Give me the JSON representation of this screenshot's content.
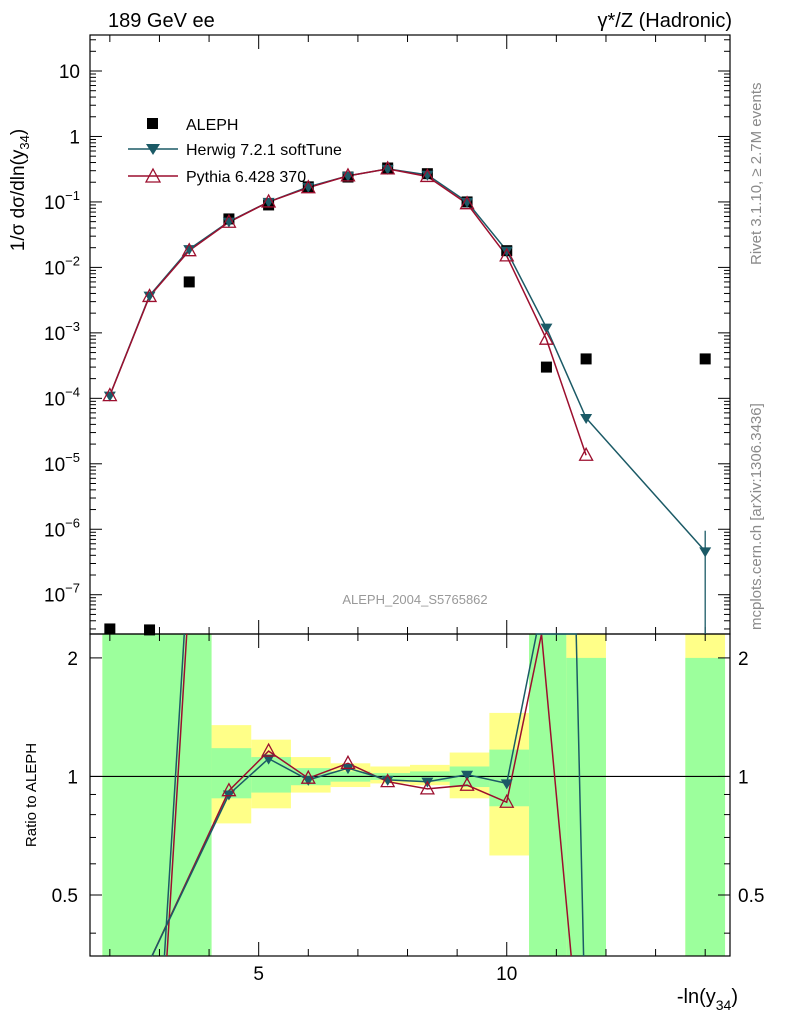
{
  "chart_data": {
    "type": "scatter",
    "header_left": "189 GeV ee",
    "header_right": "γ*/Z (Hadronic)",
    "side_top": "Rivet 3.1.10, ≥ 2.7M events",
    "side_bottom": "mcplots.cern.ch [arXiv:1306.3436]",
    "watermark": "ALEPH_2004_S5765862",
    "ylabel": "1/σ dσ/dln(y",
    "ylabel_sub": "34",
    "ylabel_close": ")",
    "ratio_ylabel": "Ratio to ALEPH",
    "xlabel": "-ln(y",
    "xlabel_sub": "34",
    "xlabel_close": ")",
    "xlim": [
      1.6,
      14.5
    ],
    "ylim_log10": [
      -7.6,
      1.55
    ],
    "ratio_ylim": [
      0.35,
      2.3
    ],
    "x_ticks": [
      5,
      10
    ],
    "x_tick_labels": [
      "5",
      "10"
    ],
    "y_ticks": [
      {
        "mant": "10",
        "exp": ""
      },
      {
        "mant": "1",
        "exp": ""
      },
      {
        "mant": "10",
        "exp": "−1"
      },
      {
        "mant": "10",
        "exp": "−2"
      },
      {
        "mant": "10",
        "exp": "−3"
      },
      {
        "mant": "10",
        "exp": "−4"
      },
      {
        "mant": "10",
        "exp": "−5"
      },
      {
        "mant": "10",
        "exp": "−6"
      },
      {
        "mant": "10",
        "exp": "−7"
      }
    ],
    "ratio_ticks": [
      2,
      1,
      0.5
    ],
    "ratio_tick_labels": [
      "2",
      "1",
      "0.5"
    ],
    "legend": [
      "ALEPH",
      "Herwig 7.2.1 softTune",
      "Pythia 6.428 370"
    ],
    "colors": {
      "data": "#000000",
      "herwig": "#1b5a66",
      "pythia": "#9c0f2e",
      "band_green": "#9cff9c",
      "band_yellow": "#ffff88"
    },
    "data": {
      "x": [
        2.0,
        2.8,
        3.6,
        4.4,
        5.2,
        6.0,
        6.8,
        7.6,
        8.4,
        9.2,
        10.0,
        10.8,
        11.6,
        14.0
      ],
      "y": [
        3e-08,
        2.9e-08,
        0.006,
        0.055,
        0.09,
        0.17,
        0.24,
        0.33,
        0.27,
        0.1,
        0.018,
        0.0003,
        0.0004,
        0.0004
      ]
    },
    "herwig": {
      "x": [
        2.0,
        2.8,
        3.6,
        4.4,
        5.2,
        6.0,
        6.8,
        7.6,
        8.4,
        9.2,
        10.0,
        10.8,
        11.6,
        14.0
      ],
      "y": [
        0.00011,
        0.0037,
        0.019,
        0.05,
        0.1,
        0.17,
        0.25,
        0.32,
        0.26,
        0.1,
        0.018,
        0.0012,
        5e-05,
        4.6e-07
      ]
    },
    "pythia": {
      "x": [
        2.0,
        2.8,
        3.6,
        4.4,
        5.2,
        6.0,
        6.8,
        7.6,
        8.4,
        9.2,
        10.0,
        10.8,
        11.6
      ],
      "y": [
        0.00011,
        0.0036,
        0.018,
        0.049,
        0.1,
        0.165,
        0.25,
        0.32,
        0.245,
        0.094,
        0.015,
        0.0008,
        1.35e-05
      ]
    },
    "herwig_ratio": {
      "x": [
        4.4,
        5.2,
        6.0,
        6.8,
        7.6,
        8.4,
        9.2,
        10.0
      ],
      "y": [
        0.9,
        1.11,
        0.98,
        1.05,
        0.98,
        0.97,
        1.01,
        0.96
      ]
    },
    "pythia_ratio": {
      "x": [
        4.4,
        5.2,
        6.0,
        6.8,
        7.6,
        8.4,
        9.2,
        10.0
      ],
      "y": [
        0.92,
        1.16,
        0.99,
        1.08,
        0.97,
        0.93,
        0.95,
        0.86
      ]
    },
    "bands": [
      {
        "x0": 1.85,
        "x1": 4.05,
        "green": [
          0.35,
          2.3
        ],
        "yellow": [
          0.35,
          2.3
        ]
      },
      {
        "x0": 4.05,
        "x1": 4.85,
        "green": [
          0.88,
          1.18
        ],
        "yellow": [
          0.76,
          1.35
        ]
      },
      {
        "x0": 4.85,
        "x1": 5.65,
        "green": [
          0.91,
          1.12
        ],
        "yellow": [
          0.83,
          1.24
        ]
      },
      {
        "x0": 5.65,
        "x1": 6.45,
        "green": [
          0.95,
          1.05
        ],
        "yellow": [
          0.91,
          1.12
        ]
      },
      {
        "x0": 6.45,
        "x1": 7.25,
        "green": [
          0.97,
          1.03
        ],
        "yellow": [
          0.94,
          1.08
        ]
      },
      {
        "x0": 7.25,
        "x1": 8.05,
        "green": [
          0.98,
          1.02
        ],
        "yellow": [
          0.96,
          1.06
        ]
      },
      {
        "x0": 8.05,
        "x1": 8.85,
        "green": [
          0.97,
          1.03
        ],
        "yellow": [
          0.95,
          1.07
        ]
      },
      {
        "x0": 8.85,
        "x1": 9.65,
        "green": [
          0.94,
          1.06
        ],
        "yellow": [
          0.88,
          1.15
        ]
      },
      {
        "x0": 9.65,
        "x1": 10.45,
        "green": [
          0.84,
          1.17
        ],
        "yellow": [
          0.63,
          1.45
        ]
      },
      {
        "x0": 10.45,
        "x1": 11.2,
        "green": [
          0.35,
          2.3
        ],
        "yellow": [
          0.35,
          2.3
        ]
      },
      {
        "x0": 11.2,
        "x1": 12.0,
        "green": [
          0.35,
          2.0
        ],
        "yellow": [
          0.35,
          2.3
        ]
      },
      {
        "x0": 13.6,
        "x1": 14.4,
        "green": [
          0.35,
          2.0
        ],
        "yellow": [
          0.35,
          2.3
        ]
      }
    ]
  }
}
